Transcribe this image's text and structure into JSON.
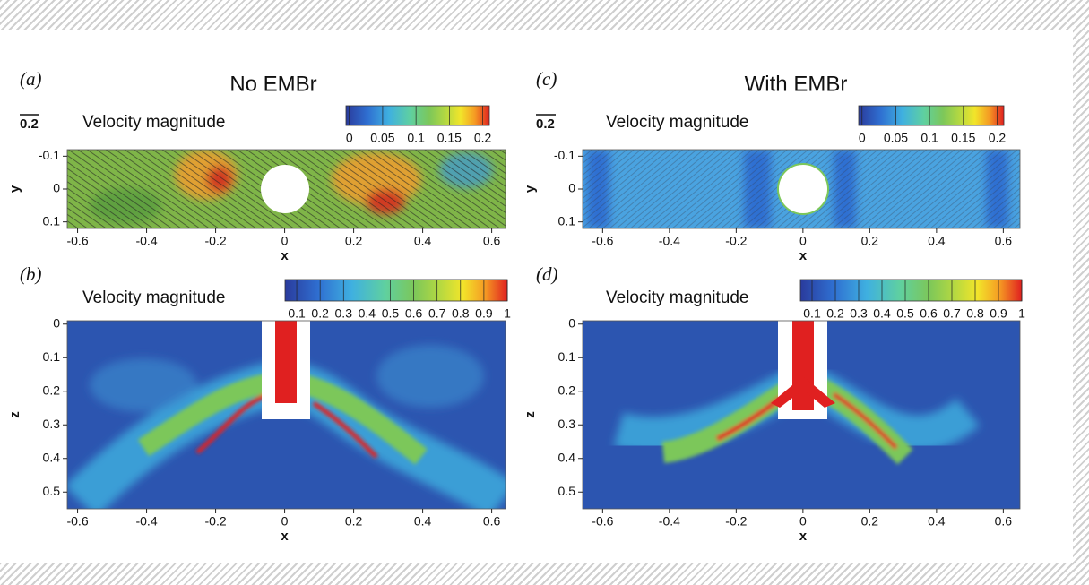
{
  "chart_data": [
    {
      "type": "contour",
      "label": "(a)",
      "title": "No EMBr",
      "reference_vector": "0.2",
      "colorbar_title": "Velocity magnitude",
      "xlabel": "x",
      "ylabel": "y",
      "xlim": [
        -0.63,
        0.64
      ],
      "ylim": [
        -0.12,
        0.12
      ],
      "yreversed": true,
      "xticks": [
        -0.6,
        -0.4,
        -0.2,
        0,
        0.2,
        0.4,
        0.6
      ],
      "yticks": [
        -0.1,
        0,
        0.1
      ],
      "clim": [
        -0.005,
        0.21
      ],
      "cticks": [
        0,
        0.05,
        0.1,
        0.15,
        0.2
      ]
    },
    {
      "type": "contour",
      "label": "(b)",
      "colorbar_title": "Velocity magnitude",
      "xlabel": "x",
      "ylabel": "z",
      "xlim": [
        -0.63,
        0.64
      ],
      "ylim": [
        -0.01,
        0.55
      ],
      "yreversed": true,
      "xticks": [
        -0.6,
        -0.4,
        -0.2,
        0,
        0.2,
        0.4,
        0.6
      ],
      "yticks": [
        0,
        0.1,
        0.2,
        0.3,
        0.4,
        0.5
      ],
      "clim": [
        0.05,
        1
      ],
      "cticks": [
        0.1,
        0.2,
        0.3,
        0.4,
        0.5,
        0.6,
        0.7,
        0.8,
        0.9,
        1
      ]
    },
    {
      "type": "contour",
      "label": "(c)",
      "title": "With EMBr",
      "reference_vector": "0.2",
      "colorbar_title": "Velocity magnitude",
      "xlabel": "x",
      "ylabel": "y",
      "xlim": [
        -0.66,
        0.65
      ],
      "ylim": [
        -0.12,
        0.12
      ],
      "yreversed": true,
      "xticks": [
        -0.6,
        -0.4,
        -0.2,
        0,
        0.2,
        0.4,
        0.6
      ],
      "yticks": [
        -0.1,
        0,
        0.1
      ],
      "clim": [
        -0.005,
        0.21
      ],
      "cticks": [
        0,
        0.05,
        0.1,
        0.15,
        0.2
      ]
    },
    {
      "type": "contour",
      "label": "(d)",
      "colorbar_title": "Velocity magnitude",
      "xlabel": "x",
      "ylabel": "z",
      "xlim": [
        -0.66,
        0.65
      ],
      "ylim": [
        -0.01,
        0.55
      ],
      "yreversed": true,
      "xticks": [
        -0.6,
        -0.4,
        -0.2,
        0,
        0.2,
        0.4,
        0.6
      ],
      "yticks": [
        0,
        0.1,
        0.2,
        0.3,
        0.4,
        0.5
      ],
      "clim": [
        0.05,
        1
      ],
      "cticks": [
        0.1,
        0.2,
        0.3,
        0.4,
        0.5,
        0.6,
        0.7,
        0.8,
        0.9,
        1
      ]
    }
  ]
}
